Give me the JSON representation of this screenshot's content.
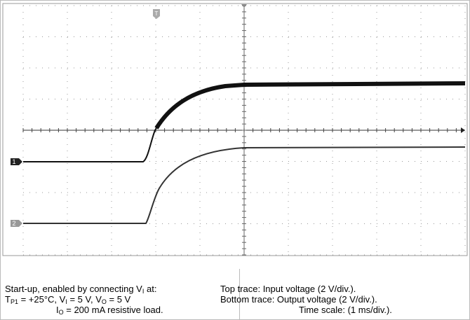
{
  "caption": {
    "left": [
      [
        {
          "text": "Start-up, enabled by connecting V"
        },
        {
          "sub": "I"
        },
        {
          "text": " at:"
        }
      ],
      [
        {
          "text": "T"
        },
        {
          "sub": "P1"
        },
        {
          "text": " = +25°C, V"
        },
        {
          "sub": "I"
        },
        {
          "text": " = 5 V, V"
        },
        {
          "sub": "O"
        },
        {
          "text": " = 5 V"
        }
      ],
      [
        {
          "text": "I"
        },
        {
          "sub": "O"
        },
        {
          "text": " = 200 mA resistive load."
        }
      ]
    ],
    "right": [
      [
        {
          "text": "Top trace: Input voltage (2 V/div.)."
        }
      ],
      [
        {
          "text": "Bottom trace: Output voltage (2 V/div.)."
        }
      ],
      [
        {
          "text": "Time scale: (1 ms/div.)."
        }
      ]
    ],
    "markers": {
      "channel1": "1",
      "channel2": "2",
      "trigger": "T"
    }
  }
}
